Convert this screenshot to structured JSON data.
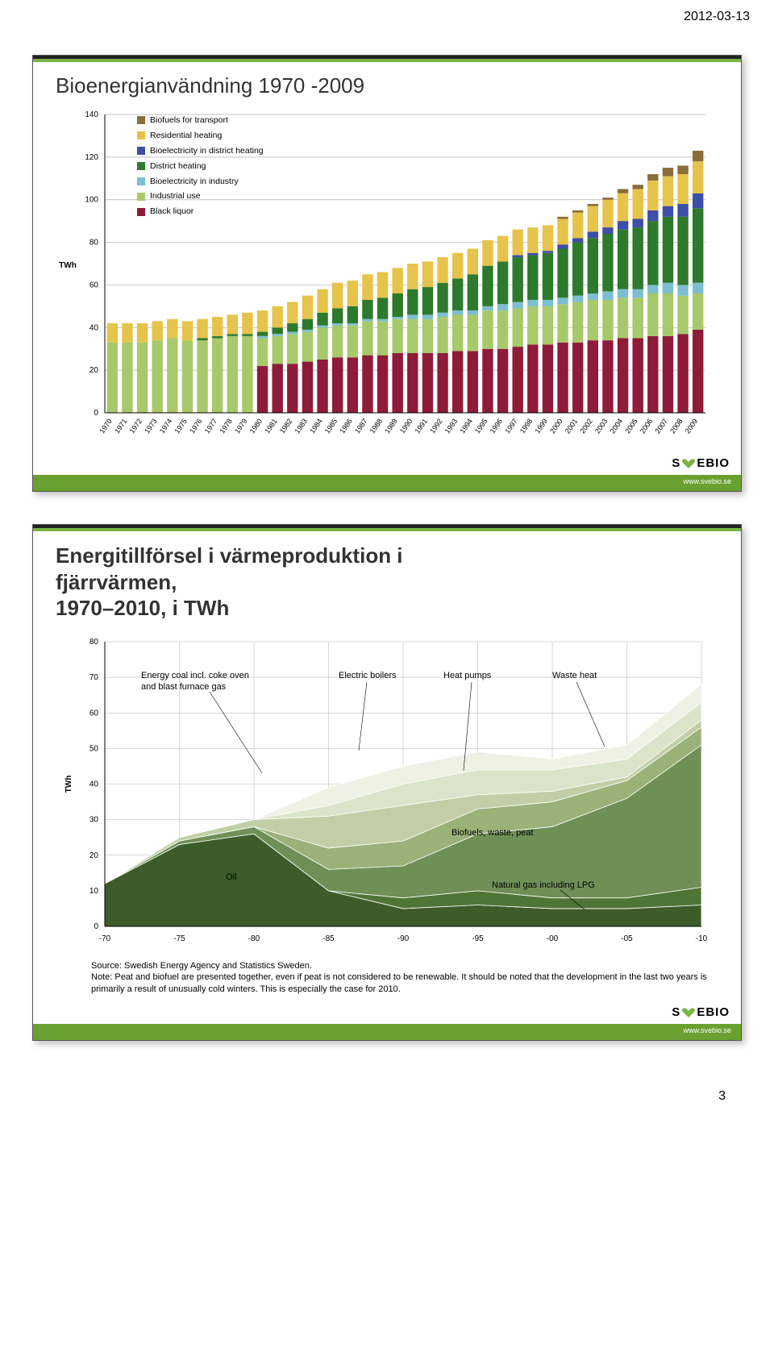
{
  "page": {
    "date": "2012-03-13",
    "number": "3"
  },
  "brand": {
    "name_parts": [
      "S",
      "V",
      "EBIO"
    ],
    "url": "www.svebio.se",
    "accent": "#7bb342",
    "bar": "#6aa030",
    "text": "#000000"
  },
  "slide1": {
    "title": "Bioenergianvändning 1970 -2009",
    "type": "stacked-bar",
    "y_axis": {
      "label": "TWh",
      "min": 0,
      "max": 140,
      "tick_step": 20
    },
    "x_axis": {
      "start_year": 1970,
      "end_year": 2009
    },
    "background": "#ffffff",
    "grid_color": "#b0b0b0",
    "legend": [
      {
        "label": "Biofuels for transport",
        "color": "#8a6d3b"
      },
      {
        "label": "Residential heating",
        "color": "#e6c34a"
      },
      {
        "label": "Bioelectricity in district heating",
        "color": "#3d4fa8"
      },
      {
        "label": "District heating",
        "color": "#2d7a2d"
      },
      {
        "label": "Bioelectricity in industry",
        "color": "#7bbfd1"
      },
      {
        "label": "Industrial use",
        "color": "#a8c96a"
      },
      {
        "label": "Black liquor",
        "color": "#8e1b3a"
      }
    ],
    "series_colors": {
      "black_liquor": "#8e1b3a",
      "industrial": "#a8c96a",
      "bioelec_ind": "#7bbfd1",
      "district": "#2d7a2d",
      "bioelec_dh": "#3d4fa8",
      "residential": "#e6c34a",
      "transport": "#8a6d3b"
    },
    "data": [
      {
        "y": 1970,
        "bl": 0,
        "ind": 33,
        "bei": 0,
        "dh": 0,
        "bdh": 0,
        "res": 9,
        "tr": 0
      },
      {
        "y": 1971,
        "bl": 0,
        "ind": 33,
        "bei": 0,
        "dh": 0,
        "bdh": 0,
        "res": 9,
        "tr": 0
      },
      {
        "y": 1972,
        "bl": 0,
        "ind": 33,
        "bei": 0,
        "dh": 0,
        "bdh": 0,
        "res": 9,
        "tr": 0
      },
      {
        "y": 1973,
        "bl": 0,
        "ind": 34,
        "bei": 0,
        "dh": 0,
        "bdh": 0,
        "res": 9,
        "tr": 0
      },
      {
        "y": 1974,
        "bl": 0,
        "ind": 35,
        "bei": 0,
        "dh": 0,
        "bdh": 0,
        "res": 9,
        "tr": 0
      },
      {
        "y": 1975,
        "bl": 0,
        "ind": 34,
        "bei": 0,
        "dh": 0,
        "bdh": 0,
        "res": 9,
        "tr": 0
      },
      {
        "y": 1976,
        "bl": 0,
        "ind": 34,
        "bei": 0,
        "dh": 1,
        "bdh": 0,
        "res": 9,
        "tr": 0
      },
      {
        "y": 1977,
        "bl": 0,
        "ind": 35,
        "bei": 0,
        "dh": 1,
        "bdh": 0,
        "res": 9,
        "tr": 0
      },
      {
        "y": 1978,
        "bl": 0,
        "ind": 36,
        "bei": 0,
        "dh": 1,
        "bdh": 0,
        "res": 9,
        "tr": 0
      },
      {
        "y": 1979,
        "bl": 0,
        "ind": 36,
        "bei": 0,
        "dh": 1,
        "bdh": 0,
        "res": 10,
        "tr": 0
      },
      {
        "y": 1980,
        "bl": 22,
        "ind": 13,
        "bei": 1,
        "dh": 2,
        "bdh": 0,
        "res": 10,
        "tr": 0
      },
      {
        "y": 1981,
        "bl": 23,
        "ind": 13,
        "bei": 1,
        "dh": 3,
        "bdh": 0,
        "res": 10,
        "tr": 0
      },
      {
        "y": 1982,
        "bl": 23,
        "ind": 14,
        "bei": 1,
        "dh": 4,
        "bdh": 0,
        "res": 10,
        "tr": 0
      },
      {
        "y": 1983,
        "bl": 24,
        "ind": 14,
        "bei": 1,
        "dh": 5,
        "bdh": 0,
        "res": 11,
        "tr": 0
      },
      {
        "y": 1984,
        "bl": 25,
        "ind": 15,
        "bei": 1,
        "dh": 6,
        "bdh": 0,
        "res": 11,
        "tr": 0
      },
      {
        "y": 1985,
        "bl": 26,
        "ind": 15,
        "bei": 1,
        "dh": 7,
        "bdh": 0,
        "res": 12,
        "tr": 0
      },
      {
        "y": 1986,
        "bl": 26,
        "ind": 15,
        "bei": 1,
        "dh": 8,
        "bdh": 0,
        "res": 12,
        "tr": 0
      },
      {
        "y": 1987,
        "bl": 27,
        "ind": 16,
        "bei": 1,
        "dh": 9,
        "bdh": 0,
        "res": 12,
        "tr": 0
      },
      {
        "y": 1988,
        "bl": 27,
        "ind": 16,
        "bei": 1,
        "dh": 10,
        "bdh": 0,
        "res": 12,
        "tr": 0
      },
      {
        "y": 1989,
        "bl": 28,
        "ind": 16,
        "bei": 1,
        "dh": 11,
        "bdh": 0,
        "res": 12,
        "tr": 0
      },
      {
        "y": 1990,
        "bl": 28,
        "ind": 16,
        "bei": 2,
        "dh": 12,
        "bdh": 0,
        "res": 12,
        "tr": 0
      },
      {
        "y": 1991,
        "bl": 28,
        "ind": 16,
        "bei": 2,
        "dh": 13,
        "bdh": 0,
        "res": 12,
        "tr": 0
      },
      {
        "y": 1992,
        "bl": 28,
        "ind": 17,
        "bei": 2,
        "dh": 14,
        "bdh": 0,
        "res": 12,
        "tr": 0
      },
      {
        "y": 1993,
        "bl": 29,
        "ind": 17,
        "bei": 2,
        "dh": 15,
        "bdh": 0,
        "res": 12,
        "tr": 0
      },
      {
        "y": 1994,
        "bl": 29,
        "ind": 17,
        "bei": 2,
        "dh": 17,
        "bdh": 0,
        "res": 12,
        "tr": 0
      },
      {
        "y": 1995,
        "bl": 30,
        "ind": 18,
        "bei": 2,
        "dh": 19,
        "bdh": 0,
        "res": 12,
        "tr": 0
      },
      {
        "y": 1996,
        "bl": 30,
        "ind": 18,
        "bei": 3,
        "dh": 20,
        "bdh": 0,
        "res": 12,
        "tr": 0
      },
      {
        "y": 1997,
        "bl": 31,
        "ind": 18,
        "bei": 3,
        "dh": 21,
        "bdh": 1,
        "res": 12,
        "tr": 0
      },
      {
        "y": 1998,
        "bl": 32,
        "ind": 18,
        "bei": 3,
        "dh": 21,
        "bdh": 1,
        "res": 12,
        "tr": 0
      },
      {
        "y": 1999,
        "bl": 32,
        "ind": 18,
        "bei": 3,
        "dh": 22,
        "bdh": 1,
        "res": 12,
        "tr": 0
      },
      {
        "y": 2000,
        "bl": 33,
        "ind": 18,
        "bei": 3,
        "dh": 23,
        "bdh": 2,
        "res": 12,
        "tr": 1
      },
      {
        "y": 2001,
        "bl": 33,
        "ind": 19,
        "bei": 3,
        "dh": 25,
        "bdh": 2,
        "res": 12,
        "tr": 1
      },
      {
        "y": 2002,
        "bl": 34,
        "ind": 19,
        "bei": 3,
        "dh": 26,
        "bdh": 3,
        "res": 12,
        "tr": 1
      },
      {
        "y": 2003,
        "bl": 34,
        "ind": 19,
        "bei": 4,
        "dh": 27,
        "bdh": 3,
        "res": 13,
        "tr": 1
      },
      {
        "y": 2004,
        "bl": 35,
        "ind": 19,
        "bei": 4,
        "dh": 28,
        "bdh": 4,
        "res": 13,
        "tr": 2
      },
      {
        "y": 2005,
        "bl": 35,
        "ind": 19,
        "bei": 4,
        "dh": 29,
        "bdh": 4,
        "res": 14,
        "tr": 2
      },
      {
        "y": 2006,
        "bl": 36,
        "ind": 20,
        "bei": 4,
        "dh": 30,
        "bdh": 5,
        "res": 14,
        "tr": 3
      },
      {
        "y": 2007,
        "bl": 36,
        "ind": 20,
        "bei": 5,
        "dh": 31,
        "bdh": 5,
        "res": 14,
        "tr": 4
      },
      {
        "y": 2008,
        "bl": 37,
        "ind": 18,
        "bei": 5,
        "dh": 32,
        "bdh": 6,
        "res": 14,
        "tr": 4
      },
      {
        "y": 2009,
        "bl": 39,
        "ind": 17,
        "bei": 5,
        "dh": 35,
        "bdh": 7,
        "res": 15,
        "tr": 5
      }
    ]
  },
  "slide2": {
    "title_l1": "Energitillförsel i värmeproduktion i",
    "title_l2": "fjärrvärmen,",
    "title_l3": "1970–2010, i TWh",
    "type": "stacked-area",
    "y_axis": {
      "label": "TWh",
      "min": 0,
      "max": 80,
      "tick_step": 10
    },
    "x_axis": {
      "ticks": [
        "-70",
        "-75",
        "-80",
        "-85",
        "-90",
        "-95",
        "-00",
        "-05",
        "-10"
      ]
    },
    "background": "#ffffff",
    "grid_color": "#b0b0b0",
    "layer_colors": {
      "oil": "#3d5c2a",
      "natgas": "#4e7536",
      "biofuels": "#6f8f56",
      "heatpumps": "#9ab178",
      "elboilers": "#c2cfa6",
      "waste": "#dbe3cb",
      "coal": "#eef1e4"
    },
    "labels_in_chart": {
      "coal": "Energy coal incl. coke oven\nand blast furnace gas",
      "elboilers": "Electric boilers",
      "heatpumps": "Heat pumps",
      "waste": "Waste heat",
      "biofuels": "Biofuels, waste, peat",
      "oil": "Oil",
      "natgas": "Natural gas including LPG"
    },
    "x_values": [
      1970,
      1975,
      1980,
      1985,
      1990,
      1995,
      2000,
      2005,
      2010
    ],
    "series": {
      "oil": [
        12,
        23,
        26,
        10,
        5,
        6,
        5,
        5,
        6
      ],
      "natgas": [
        0,
        0,
        0,
        0,
        3,
        4,
        3,
        3,
        5
      ],
      "biofuels": [
        0,
        1,
        2,
        6,
        9,
        16,
        20,
        28,
        40
      ],
      "heatpumps": [
        0,
        0,
        0,
        6,
        7,
        7,
        7,
        5,
        5
      ],
      "elboilers": [
        0,
        1,
        2,
        9,
        10,
        4,
        3,
        1,
        2
      ],
      "waste": [
        0,
        0,
        0,
        3,
        6,
        7,
        6,
        5,
        5
      ],
      "coal": [
        0,
        0,
        0,
        5,
        5,
        5,
        3,
        4,
        5
      ]
    },
    "notes": {
      "source_label": "Source:",
      "source_text": "Swedish Energy Agency and Statistics Sweden.",
      "note_label": "Note:",
      "note_text": "Peat and biofuel are presented together, even if peat is not considered to be renewable. It should be noted that the development in the last two years is primarily a result of unusually cold winters. This is especially the case for 2010."
    }
  }
}
